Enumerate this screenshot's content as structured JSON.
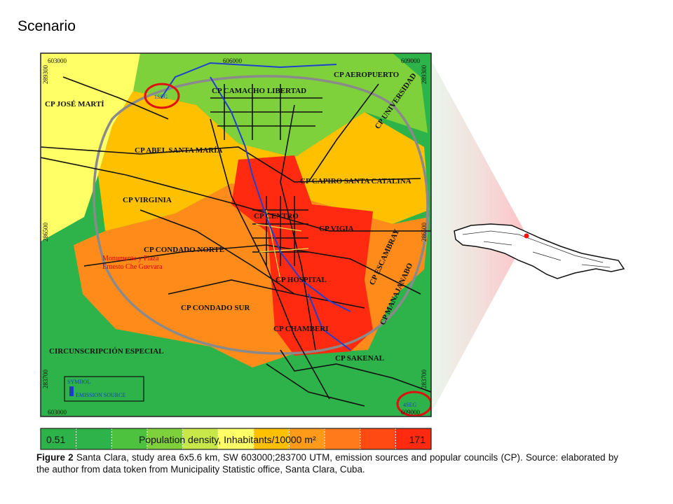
{
  "title": "Scenario",
  "map": {
    "coords": [
      "603000",
      "606000",
      "609000",
      "289300",
      "286500",
      "283700",
      "289300",
      "286500",
      "283700",
      "603000",
      "609000"
    ],
    "labels": [
      "CP AEROPUERTO",
      "CP CAMACHO LIBERTAD",
      "CP JOSÉ MARTÍ",
      "CP UNIVERSIDAD",
      "CP ABEL SANTA MARÍA",
      "CP CAPIRO SANTA CATALINA",
      "CP VIRGINIA",
      "CP CENTRO",
      "CP VIGIA",
      "CP CONDADO NORTE",
      "CP ESCAMBRAY",
      "CP HOSPITAL",
      "CP CONDADO SUR",
      "CP MANAJANABO",
      "CP CHAMBERI",
      "CIRCUNSCRIPCIÓN ESPECIAL",
      "CP SAKENAL"
    ],
    "red_labels": [
      "Monumento y Plaza",
      "Ernesto Che Guevara"
    ],
    "sources": [
      "1SEG",
      "4SEG"
    ],
    "symbol": {
      "title": "SYMBOL",
      "item": "EMISSION SOURCE"
    }
  },
  "legend": {
    "min": "0.51",
    "title": "Population density, Inhabitants/10000 m²",
    "max": "171",
    "colors": [
      "#2db34a",
      "#2db34a",
      "#4cc23e",
      "#7fd13b",
      "#c8e84a",
      "#ffff66",
      "#ffc000",
      "#ff9a1a",
      "#ff7a1a",
      "#ff4a14",
      "#ff2a10"
    ]
  },
  "caption": {
    "label": "Figure 2",
    "text": "Santa Clara, study area 6x5.6 km, SW 603000;283700 UTM, emission sources and popular councils (CP). Source: elaborated by the author from data token from Municipality Statistic office, Santa Clara, Cuba."
  }
}
